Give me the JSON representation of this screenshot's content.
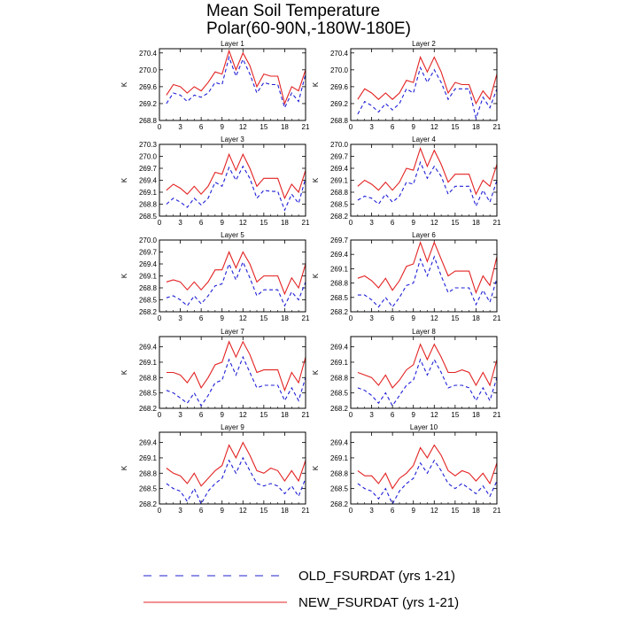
{
  "figure": {
    "title_line1": "Mean Soil Temperature",
    "title_line2": "Polar(60-90N,-180W-180E)"
  },
  "colors": {
    "old": "#1f1fd6",
    "new": "#e32222"
  },
  "legend": [
    {
      "name": "OLD_FSURDAT (yrs 1-21)",
      "style": "dashed",
      "color": "#1f1fd6"
    },
    {
      "name": "NEW_FSURDAT (yrs 1-21)",
      "style": "solid",
      "color": "#e32222"
    }
  ],
  "chart_data": [
    {
      "type": "line",
      "title": "Layer 1",
      "xlabel": "",
      "ylabel": "K",
      "xlim": [
        0,
        21
      ],
      "xticks": [
        0,
        3,
        6,
        9,
        12,
        15,
        18,
        21
      ],
      "ylim": [
        268.8,
        270.5
      ],
      "yticks": [
        268.8,
        269.2,
        269.6,
        270.0,
        270.4
      ],
      "x": [
        1,
        2,
        3,
        4,
        5,
        6,
        7,
        8,
        9,
        10,
        11,
        12,
        13,
        14,
        15,
        16,
        17,
        18,
        19,
        20,
        21
      ],
      "series": [
        {
          "name": "OLD_FSURDAT (yrs 1-21)",
          "style": "dashed",
          "values": [
            269.2,
            269.45,
            269.4,
            269.25,
            269.4,
            269.35,
            269.45,
            269.7,
            269.65,
            270.3,
            269.85,
            270.25,
            269.9,
            269.45,
            269.7,
            269.65,
            269.65,
            269.1,
            269.45,
            269.25,
            269.9
          ]
        },
        {
          "name": "NEW_FSURDAT (yrs 1-21)",
          "style": "solid",
          "values": [
            269.4,
            269.65,
            269.6,
            269.45,
            269.6,
            269.5,
            269.7,
            269.95,
            269.9,
            270.45,
            270.0,
            270.4,
            270.1,
            269.6,
            269.9,
            269.85,
            269.85,
            269.2,
            269.6,
            269.5,
            270.0
          ]
        }
      ]
    },
    {
      "type": "line",
      "title": "Layer 2",
      "xlabel": "",
      "ylabel": "K",
      "xlim": [
        0,
        21
      ],
      "xticks": [
        0,
        3,
        6,
        9,
        12,
        15,
        18,
        21
      ],
      "ylim": [
        268.8,
        270.5
      ],
      "yticks": [
        268.8,
        269.2,
        269.6,
        270.0,
        270.4
      ],
      "x": [
        1,
        2,
        3,
        4,
        5,
        6,
        7,
        8,
        9,
        10,
        11,
        12,
        13,
        14,
        15,
        16,
        17,
        18,
        19,
        20,
        21
      ],
      "series": [
        {
          "name": "OLD_FSURDAT (yrs 1-21)",
          "style": "dashed",
          "values": [
            268.95,
            269.25,
            269.15,
            269.0,
            269.2,
            269.05,
            269.2,
            269.55,
            269.45,
            270.05,
            269.7,
            270.0,
            269.7,
            269.3,
            269.55,
            269.55,
            269.55,
            268.85,
            269.35,
            269.1,
            269.55
          ]
        },
        {
          "name": "NEW_FSURDAT (yrs 1-21)",
          "style": "solid",
          "values": [
            269.3,
            269.55,
            269.45,
            269.3,
            269.45,
            269.3,
            269.45,
            269.75,
            269.7,
            270.3,
            269.95,
            270.3,
            269.95,
            269.45,
            269.7,
            269.65,
            269.65,
            269.2,
            269.5,
            269.3,
            269.9
          ]
        }
      ]
    },
    {
      "type": "line",
      "title": "Layer 3",
      "xlabel": "",
      "ylabel": "K",
      "xlim": [
        0,
        21
      ],
      "xticks": [
        0,
        3,
        6,
        9,
        12,
        15,
        18,
        21
      ],
      "ylim": [
        268.5,
        270.3
      ],
      "yticks": [
        268.5,
        268.8,
        269.1,
        269.4,
        269.7,
        270.0,
        270.3
      ],
      "x": [
        1,
        2,
        3,
        4,
        5,
        6,
        7,
        8,
        9,
        10,
        11,
        12,
        13,
        14,
        15,
        16,
        17,
        18,
        19,
        20,
        21
      ],
      "series": [
        {
          "name": "OLD_FSURDAT (yrs 1-21)",
          "style": "dashed",
          "values": [
            268.8,
            268.95,
            268.85,
            268.72,
            268.95,
            268.78,
            268.95,
            269.35,
            269.25,
            269.72,
            269.4,
            269.75,
            269.45,
            268.95,
            269.15,
            269.12,
            269.12,
            268.65,
            269.05,
            268.82,
            269.45
          ]
        },
        {
          "name": "NEW_FSURDAT (yrs 1-21)",
          "style": "solid",
          "values": [
            269.15,
            269.3,
            269.2,
            269.05,
            269.25,
            269.05,
            269.25,
            269.6,
            269.55,
            270.05,
            269.65,
            270.05,
            269.7,
            269.25,
            269.45,
            269.45,
            269.45,
            268.95,
            269.3,
            269.1,
            269.65
          ]
        }
      ]
    },
    {
      "type": "line",
      "title": "Layer 4",
      "xlabel": "",
      "ylabel": "K",
      "xlim": [
        0,
        21
      ],
      "xticks": [
        0,
        3,
        6,
        9,
        12,
        15,
        18,
        21
      ],
      "ylim": [
        268.2,
        270.0
      ],
      "yticks": [
        268.2,
        268.5,
        268.8,
        269.1,
        269.4,
        269.7,
        270.0
      ],
      "x": [
        1,
        2,
        3,
        4,
        5,
        6,
        7,
        8,
        9,
        10,
        11,
        12,
        13,
        14,
        15,
        16,
        17,
        18,
        19,
        20,
        21
      ],
      "series": [
        {
          "name": "OLD_FSURDAT (yrs 1-21)",
          "style": "dashed",
          "values": [
            268.6,
            268.7,
            268.65,
            268.5,
            268.75,
            268.55,
            268.7,
            269.05,
            269.0,
            269.55,
            269.15,
            269.45,
            269.2,
            268.75,
            268.95,
            268.95,
            268.95,
            268.45,
            268.85,
            268.55,
            269.1
          ]
        },
        {
          "name": "NEW_FSURDAT (yrs 1-21)",
          "style": "solid",
          "values": [
            268.95,
            269.1,
            269.0,
            268.85,
            269.05,
            268.85,
            269.05,
            269.4,
            269.35,
            269.9,
            269.45,
            269.85,
            269.5,
            269.05,
            269.25,
            269.25,
            269.25,
            268.75,
            269.1,
            268.95,
            269.5
          ]
        }
      ]
    },
    {
      "type": "line",
      "title": "Layer 5",
      "xlabel": "",
      "ylabel": "K",
      "xlim": [
        0,
        21
      ],
      "xticks": [
        0,
        3,
        6,
        9,
        12,
        15,
        18,
        21
      ],
      "ylim": [
        268.2,
        270.0
      ],
      "yticks": [
        268.2,
        268.5,
        268.8,
        269.1,
        269.4,
        269.7,
        270.0
      ],
      "x": [
        1,
        2,
        3,
        4,
        5,
        6,
        7,
        8,
        9,
        10,
        11,
        12,
        13,
        14,
        15,
        16,
        17,
        18,
        19,
        20,
        21
      ],
      "series": [
        {
          "name": "OLD_FSURDAT (yrs 1-21)",
          "style": "dashed",
          "values": [
            268.55,
            268.6,
            268.5,
            268.35,
            268.6,
            268.4,
            268.6,
            268.85,
            268.9,
            269.4,
            269.0,
            269.45,
            269.05,
            268.6,
            268.75,
            268.75,
            268.75,
            268.35,
            268.7,
            268.5,
            268.95
          ]
        },
        {
          "name": "NEW_FSURDAT (yrs 1-21)",
          "style": "solid",
          "values": [
            268.95,
            269.0,
            268.95,
            268.75,
            268.95,
            268.75,
            268.95,
            269.25,
            269.25,
            269.7,
            269.3,
            269.7,
            269.4,
            268.95,
            269.1,
            269.1,
            269.1,
            268.65,
            269.05,
            268.8,
            269.4
          ]
        }
      ]
    },
    {
      "type": "line",
      "title": "Layer 6",
      "xlabel": "",
      "ylabel": "K",
      "xlim": [
        0,
        21
      ],
      "xticks": [
        0,
        3,
        6,
        9,
        12,
        15,
        18,
        21
      ],
      "ylim": [
        268.2,
        269.7
      ],
      "yticks": [
        268.2,
        268.5,
        268.8,
        269.1,
        269.4,
        269.7
      ],
      "x": [
        1,
        2,
        3,
        4,
        5,
        6,
        7,
        8,
        9,
        10,
        11,
        12,
        13,
        14,
        15,
        16,
        17,
        18,
        19,
        20,
        21
      ],
      "series": [
        {
          "name": "OLD_FSURDAT (yrs 1-21)",
          "style": "dashed",
          "values": [
            268.55,
            268.55,
            268.45,
            268.3,
            268.5,
            268.3,
            268.5,
            268.75,
            268.8,
            269.3,
            268.95,
            269.35,
            268.95,
            268.6,
            268.7,
            268.7,
            268.7,
            268.35,
            268.65,
            268.4,
            268.9
          ]
        },
        {
          "name": "NEW_FSURDAT (yrs 1-21)",
          "style": "solid",
          "values": [
            268.9,
            268.95,
            268.85,
            268.7,
            268.9,
            268.65,
            268.85,
            269.15,
            269.2,
            269.65,
            269.25,
            269.65,
            269.3,
            268.95,
            269.05,
            269.05,
            269.05,
            268.6,
            268.95,
            268.75,
            269.35
          ]
        }
      ]
    },
    {
      "type": "line",
      "title": "Layer 7",
      "xlabel": "",
      "ylabel": "K",
      "xlim": [
        0,
        21
      ],
      "xticks": [
        0,
        3,
        6,
        9,
        12,
        15,
        18,
        21
      ],
      "ylim": [
        268.2,
        269.6
      ],
      "yticks": [
        268.2,
        268.5,
        268.8,
        269.1,
        269.4
      ],
      "x": [
        1,
        2,
        3,
        4,
        5,
        6,
        7,
        8,
        9,
        10,
        11,
        12,
        13,
        14,
        15,
        16,
        17,
        18,
        19,
        20,
        21
      ],
      "series": [
        {
          "name": "OLD_FSURDAT (yrs 1-21)",
          "style": "dashed",
          "values": [
            268.55,
            268.5,
            268.4,
            268.3,
            268.5,
            268.25,
            268.45,
            268.7,
            268.75,
            269.15,
            268.85,
            269.2,
            268.9,
            268.6,
            268.65,
            268.65,
            268.65,
            268.35,
            268.6,
            268.35,
            268.8
          ]
        },
        {
          "name": "NEW_FSURDAT (yrs 1-21)",
          "style": "solid",
          "values": [
            268.9,
            268.9,
            268.85,
            268.7,
            268.9,
            268.6,
            268.8,
            269.05,
            269.1,
            269.5,
            269.2,
            269.5,
            269.25,
            268.9,
            268.95,
            268.95,
            268.95,
            268.55,
            268.9,
            268.7,
            269.2
          ]
        }
      ]
    },
    {
      "type": "line",
      "title": "Layer 8",
      "xlabel": "",
      "ylabel": "K",
      "xlim": [
        0,
        21
      ],
      "xticks": [
        0,
        3,
        6,
        9,
        12,
        15,
        18,
        21
      ],
      "ylim": [
        268.2,
        269.6
      ],
      "yticks": [
        268.2,
        268.5,
        268.8,
        269.1,
        269.4
      ],
      "x": [
        1,
        2,
        3,
        4,
        5,
        6,
        7,
        8,
        9,
        10,
        11,
        12,
        13,
        14,
        15,
        16,
        17,
        18,
        19,
        20,
        21
      ],
      "series": [
        {
          "name": "OLD_FSURDAT (yrs 1-21)",
          "style": "dashed",
          "values": [
            268.6,
            268.55,
            268.45,
            268.3,
            268.5,
            268.25,
            268.45,
            268.65,
            268.75,
            269.15,
            268.85,
            269.15,
            268.9,
            268.6,
            268.65,
            268.65,
            268.6,
            268.35,
            268.6,
            268.35,
            268.8
          ]
        },
        {
          "name": "NEW_FSURDAT (yrs 1-21)",
          "style": "solid",
          "values": [
            268.9,
            268.85,
            268.8,
            268.65,
            268.85,
            268.6,
            268.75,
            268.95,
            269.05,
            269.45,
            269.15,
            269.45,
            269.2,
            268.9,
            268.9,
            268.95,
            268.9,
            268.65,
            268.9,
            268.65,
            269.15
          ]
        }
      ]
    },
    {
      "type": "line",
      "title": "Layer 9",
      "xlabel": "",
      "ylabel": "K",
      "xlim": [
        0,
        21
      ],
      "xticks": [
        0,
        3,
        6,
        9,
        12,
        15,
        18,
        21
      ],
      "ylim": [
        268.2,
        269.6
      ],
      "yticks": [
        268.2,
        268.5,
        268.8,
        269.1,
        269.4
      ],
      "x": [
        1,
        2,
        3,
        4,
        5,
        6,
        7,
        8,
        9,
        10,
        11,
        12,
        13,
        14,
        15,
        16,
        17,
        18,
        19,
        20,
        21
      ],
      "series": [
        {
          "name": "OLD_FSURDAT (yrs 1-21)",
          "style": "dashed",
          "values": [
            268.6,
            268.5,
            268.45,
            268.25,
            268.5,
            268.2,
            268.45,
            268.6,
            268.7,
            269.05,
            268.8,
            269.1,
            268.85,
            268.6,
            268.55,
            268.6,
            268.55,
            268.4,
            268.55,
            268.35,
            268.7
          ]
        },
        {
          "name": "NEW_FSURDAT (yrs 1-21)",
          "style": "solid",
          "values": [
            268.9,
            268.8,
            268.75,
            268.6,
            268.8,
            268.55,
            268.7,
            268.85,
            268.95,
            269.35,
            269.1,
            269.4,
            269.15,
            268.85,
            268.8,
            268.9,
            268.85,
            268.65,
            268.85,
            268.65,
            269.05
          ]
        }
      ]
    },
    {
      "type": "line",
      "title": "Layer 10",
      "xlabel": "",
      "ylabel": "K",
      "xlim": [
        0,
        21
      ],
      "xticks": [
        0,
        3,
        6,
        9,
        12,
        15,
        18,
        21
      ],
      "ylim": [
        268.2,
        269.6
      ],
      "yticks": [
        268.2,
        268.5,
        268.8,
        269.1,
        269.4
      ],
      "x": [
        1,
        2,
        3,
        4,
        5,
        6,
        7,
        8,
        9,
        10,
        11,
        12,
        13,
        14,
        15,
        16,
        17,
        18,
        19,
        20,
        21
      ],
      "series": [
        {
          "name": "OLD_FSURDAT (yrs 1-21)",
          "style": "dashed",
          "values": [
            268.6,
            268.5,
            268.45,
            268.3,
            268.5,
            268.2,
            268.45,
            268.6,
            268.7,
            269.0,
            268.8,
            269.05,
            268.85,
            268.6,
            268.5,
            268.6,
            268.5,
            268.4,
            268.55,
            268.35,
            268.65
          ]
        },
        {
          "name": "NEW_FSURDAT (yrs 1-21)",
          "style": "solid",
          "values": [
            268.85,
            268.75,
            268.75,
            268.6,
            268.8,
            268.5,
            268.7,
            268.8,
            268.95,
            269.3,
            269.1,
            269.35,
            269.15,
            268.85,
            268.75,
            268.85,
            268.8,
            268.65,
            268.8,
            268.6,
            269.0
          ]
        }
      ]
    }
  ]
}
